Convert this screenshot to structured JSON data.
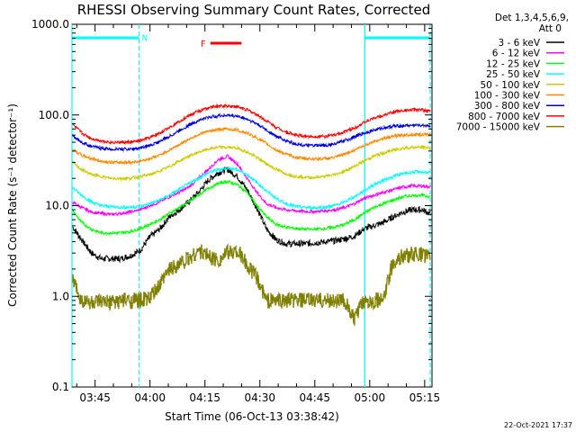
{
  "chart_data": {
    "type": "line",
    "title": "RHESSI Observing Summary Count Rates, Corrected",
    "ylabel": "Corrected Count Rate (s⁻¹ detector⁻¹)",
    "xlabel": "Start Time (06-Oct-13 03:38:42)",
    "y_scale": "log",
    "ylim": [
      0.1,
      1000.0
    ],
    "xlim": [
      "03:38:42",
      "05:17:00"
    ],
    "y_tick_labels": [
      "0.1",
      "1.0",
      "10.0",
      "100.0",
      "1000.0"
    ],
    "x_tick_labels": [
      "03:45",
      "04:00",
      "04:15",
      "04:30",
      "04:45",
      "05:00",
      "05:15"
    ],
    "legend": {
      "header": [
        "Det 1,3,4,5,6,9,",
        "Att 0"
      ],
      "placement": "right"
    },
    "series": [
      {
        "name": "3 - 6 keV",
        "color": "#000000",
        "values": [
          6.0,
          4.2,
          3.0,
          2.6,
          2.6,
          2.6,
          2.8,
          3.2,
          4.5,
          5.5,
          7.5,
          9.0,
          11,
          14,
          19,
          23,
          25,
          21,
          15,
          9.5,
          5.5,
          4.2,
          3.8,
          3.8,
          3.8,
          3.9,
          4.0,
          4.1,
          4.3,
          4.6,
          5.5,
          6.0,
          6.5,
          7.5,
          8.5,
          9.0,
          9.0,
          8.0
        ]
      },
      {
        "name": "6 - 12 keV",
        "color": "#ff00ff",
        "values": [
          11,
          9.5,
          8.5,
          8.2,
          8.0,
          8.2,
          8.5,
          9.0,
          10,
          11,
          12.5,
          14,
          16,
          20,
          25,
          32,
          35,
          29,
          20,
          14,
          10.5,
          9.5,
          9.0,
          8.8,
          8.6,
          8.6,
          8.8,
          9.0,
          9.5,
          10.5,
          12,
          13,
          14,
          15,
          16,
          16.5,
          16.5,
          16
        ]
      },
      {
        "name": "12 - 25 keV",
        "color": "#00ff00",
        "values": [
          9.0,
          6.5,
          5.5,
          5.0,
          5.0,
          5.0,
          5.2,
          5.6,
          6.2,
          7.0,
          8.2,
          9.5,
          11,
          13,
          15.5,
          17.5,
          18.5,
          17,
          14,
          10,
          7.5,
          6.2,
          5.8,
          5.6,
          5.5,
          5.5,
          5.6,
          5.8,
          6.2,
          7.0,
          8.2,
          9.5,
          10.5,
          11.5,
          12.5,
          13,
          13,
          12.5
        ]
      },
      {
        "name": "25 - 50 keV",
        "color": "#00ffff",
        "values": [
          16,
          13,
          11,
          10,
          9.8,
          9.6,
          9.6,
          9.8,
          10.5,
          11.5,
          13,
          15,
          17.5,
          20,
          23,
          25,
          26,
          25,
          22,
          18,
          14.5,
          12,
          10.5,
          9.8,
          9.5,
          9.5,
          9.6,
          10,
          11,
          12.5,
          14.5,
          17,
          19,
          21,
          22.5,
          23.5,
          23.5,
          23
        ]
      },
      {
        "name": "50 - 100 keV",
        "color": "#cccc00",
        "values": [
          30,
          25,
          22,
          21,
          20,
          20,
          20,
          21,
          22,
          24,
          27,
          31,
          35,
          39,
          42,
          44,
          44,
          43,
          39,
          34,
          29,
          25,
          22.5,
          21,
          20.5,
          20.5,
          21,
          22,
          24,
          27,
          31,
          35,
          38,
          41,
          43,
          44,
          44,
          43
        ]
      },
      {
        "name": "100 - 300 keV",
        "color": "#ff8800",
        "values": [
          42,
          36,
          33,
          31,
          30,
          30,
          30,
          31,
          33,
          36,
          41,
          47,
          54,
          61,
          66,
          69,
          70,
          68,
          63,
          56,
          48,
          41,
          37,
          34,
          33,
          33,
          33,
          34,
          37,
          41,
          46,
          51,
          55,
          58,
          60,
          61,
          61,
          60
        ]
      },
      {
        "name": "300 - 800 keV",
        "color": "#0000dd",
        "values": [
          60,
          50,
          45,
          43,
          42,
          42,
          42,
          43,
          46,
          51,
          58,
          67,
          77,
          87,
          94,
          98,
          99,
          97,
          90,
          80,
          68,
          58,
          52,
          48,
          46,
          46,
          46,
          48,
          52,
          57,
          63,
          68,
          72,
          75,
          76,
          77,
          77,
          76
        ]
      },
      {
        "name": "800 - 7000 keV",
        "color": "#ff0000",
        "values": [
          80,
          63,
          55,
          52,
          50,
          50,
          50,
          52,
          56,
          63,
          73,
          85,
          98,
          110,
          120,
          125,
          126,
          123,
          114,
          101,
          86,
          73,
          65,
          60,
          58,
          58,
          58,
          60,
          65,
          72,
          82,
          92,
          100,
          107,
          112,
          114,
          113,
          110
        ]
      },
      {
        "name": "7000 - 15000 keV",
        "color": "#808000",
        "values": [
          1.6,
          0.9,
          0.85,
          0.85,
          0.85,
          0.9,
          0.9,
          0.9,
          0.95,
          1.3,
          2.0,
          2.3,
          2.6,
          3.2,
          2.8,
          2.5,
          3.0,
          3.2,
          2.2,
          1.6,
          0.9,
          0.9,
          0.9,
          0.9,
          0.9,
          0.9,
          0.9,
          0.9,
          0.9,
          0.55,
          0.9,
          0.9,
          0.9,
          2.4,
          2.8,
          2.9,
          2.9,
          2.7
        ]
      }
    ],
    "attenuator_top_bar": {
      "color": "#00ffff",
      "label": "N",
      "intervals": [
        [
          "03:38:42",
          "03:57:00"
        ],
        [
          "04:58:40",
          "05:16:30"
        ]
      ]
    },
    "flare_bar": {
      "color": "#ff0000",
      "label": "F",
      "interval": [
        "04:16:30",
        "04:25:00"
      ]
    },
    "vertical_markers": [
      {
        "time": "03:38:42",
        "style": "solid",
        "color": "#00ffff"
      },
      {
        "time": "03:57:00",
        "style": "dashed",
        "color": "#00ffff"
      },
      {
        "time": "04:58:40",
        "style": "solid",
        "color": "#00ffff"
      },
      {
        "time": "05:16:30",
        "style": "dashed",
        "color": "#00ffff"
      }
    ],
    "grid": false
  },
  "footer": {
    "timestamp": "22-Oct-2021 17:37"
  }
}
